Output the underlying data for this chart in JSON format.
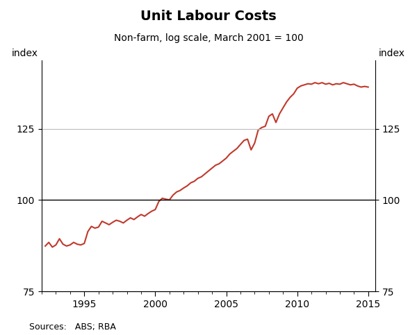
{
  "title": "Unit Labour Costs",
  "subtitle": "Non-farm, log scale, March 2001 = 100",
  "source": "Sources:   ABS; RBA",
  "line_color": "#c0392b",
  "background_color": "#ffffff",
  "yticks": [
    75,
    100,
    125
  ],
  "xlim": [
    1992.0,
    2015.5
  ],
  "ylim": [
    75,
    155
  ],
  "xticks": [
    1995,
    2000,
    2005,
    2010,
    2015
  ],
  "data": [
    [
      1992.25,
      86.5
    ],
    [
      1992.5,
      87.5
    ],
    [
      1992.75,
      86.2
    ],
    [
      1993.0,
      86.8
    ],
    [
      1993.25,
      88.5
    ],
    [
      1993.5,
      87.0
    ],
    [
      1993.75,
      86.5
    ],
    [
      1994.0,
      86.8
    ],
    [
      1994.25,
      87.5
    ],
    [
      1994.5,
      87.0
    ],
    [
      1994.75,
      86.8
    ],
    [
      1995.0,
      87.2
    ],
    [
      1995.25,
      90.5
    ],
    [
      1995.5,
      92.0
    ],
    [
      1995.75,
      91.5
    ],
    [
      1996.0,
      91.8
    ],
    [
      1996.25,
      93.5
    ],
    [
      1996.5,
      93.0
    ],
    [
      1996.75,
      92.5
    ],
    [
      1997.0,
      93.2
    ],
    [
      1997.25,
      93.8
    ],
    [
      1997.5,
      93.5
    ],
    [
      1997.75,
      93.0
    ],
    [
      1998.0,
      93.8
    ],
    [
      1998.25,
      94.5
    ],
    [
      1998.5,
      94.0
    ],
    [
      1998.75,
      94.8
    ],
    [
      1999.0,
      95.5
    ],
    [
      1999.25,
      95.0
    ],
    [
      1999.5,
      95.8
    ],
    [
      1999.75,
      96.5
    ],
    [
      2000.0,
      97.0
    ],
    [
      2000.25,
      99.5
    ],
    [
      2000.5,
      100.5
    ],
    [
      2000.75,
      100.2
    ],
    [
      2001.0,
      100.0
    ],
    [
      2001.25,
      101.5
    ],
    [
      2001.5,
      102.5
    ],
    [
      2001.75,
      103.0
    ],
    [
      2002.0,
      103.8
    ],
    [
      2002.25,
      104.5
    ],
    [
      2002.5,
      105.5
    ],
    [
      2002.75,
      106.0
    ],
    [
      2003.0,
      107.0
    ],
    [
      2003.25,
      107.5
    ],
    [
      2003.5,
      108.5
    ],
    [
      2003.75,
      109.5
    ],
    [
      2004.0,
      110.5
    ],
    [
      2004.25,
      111.5
    ],
    [
      2004.5,
      112.0
    ],
    [
      2004.75,
      113.0
    ],
    [
      2005.0,
      114.0
    ],
    [
      2005.25,
      115.5
    ],
    [
      2005.5,
      116.5
    ],
    [
      2005.75,
      117.5
    ],
    [
      2006.0,
      119.0
    ],
    [
      2006.25,
      120.5
    ],
    [
      2006.5,
      121.0
    ],
    [
      2006.75,
      117.0
    ],
    [
      2007.0,
      119.5
    ],
    [
      2007.25,
      124.5
    ],
    [
      2007.5,
      125.5
    ],
    [
      2007.75,
      126.0
    ],
    [
      2008.0,
      130.0
    ],
    [
      2008.25,
      131.0
    ],
    [
      2008.5,
      127.5
    ],
    [
      2008.75,
      131.0
    ],
    [
      2009.0,
      133.5
    ],
    [
      2009.25,
      136.0
    ],
    [
      2009.5,
      138.0
    ],
    [
      2009.75,
      139.5
    ],
    [
      2010.0,
      142.0
    ],
    [
      2010.25,
      143.0
    ],
    [
      2010.5,
      143.5
    ],
    [
      2010.75,
      144.0
    ],
    [
      2011.0,
      143.8
    ],
    [
      2011.25,
      144.5
    ],
    [
      2011.5,
      144.0
    ],
    [
      2011.75,
      144.5
    ],
    [
      2012.0,
      143.8
    ],
    [
      2012.25,
      144.2
    ],
    [
      2012.5,
      143.5
    ],
    [
      2012.75,
      144.0
    ],
    [
      2013.0,
      143.8
    ],
    [
      2013.25,
      144.5
    ],
    [
      2013.5,
      144.0
    ],
    [
      2013.75,
      143.5
    ],
    [
      2014.0,
      143.8
    ],
    [
      2014.25,
      143.0
    ],
    [
      2014.5,
      142.5
    ],
    [
      2014.75,
      142.8
    ],
    [
      2015.0,
      142.5
    ]
  ]
}
